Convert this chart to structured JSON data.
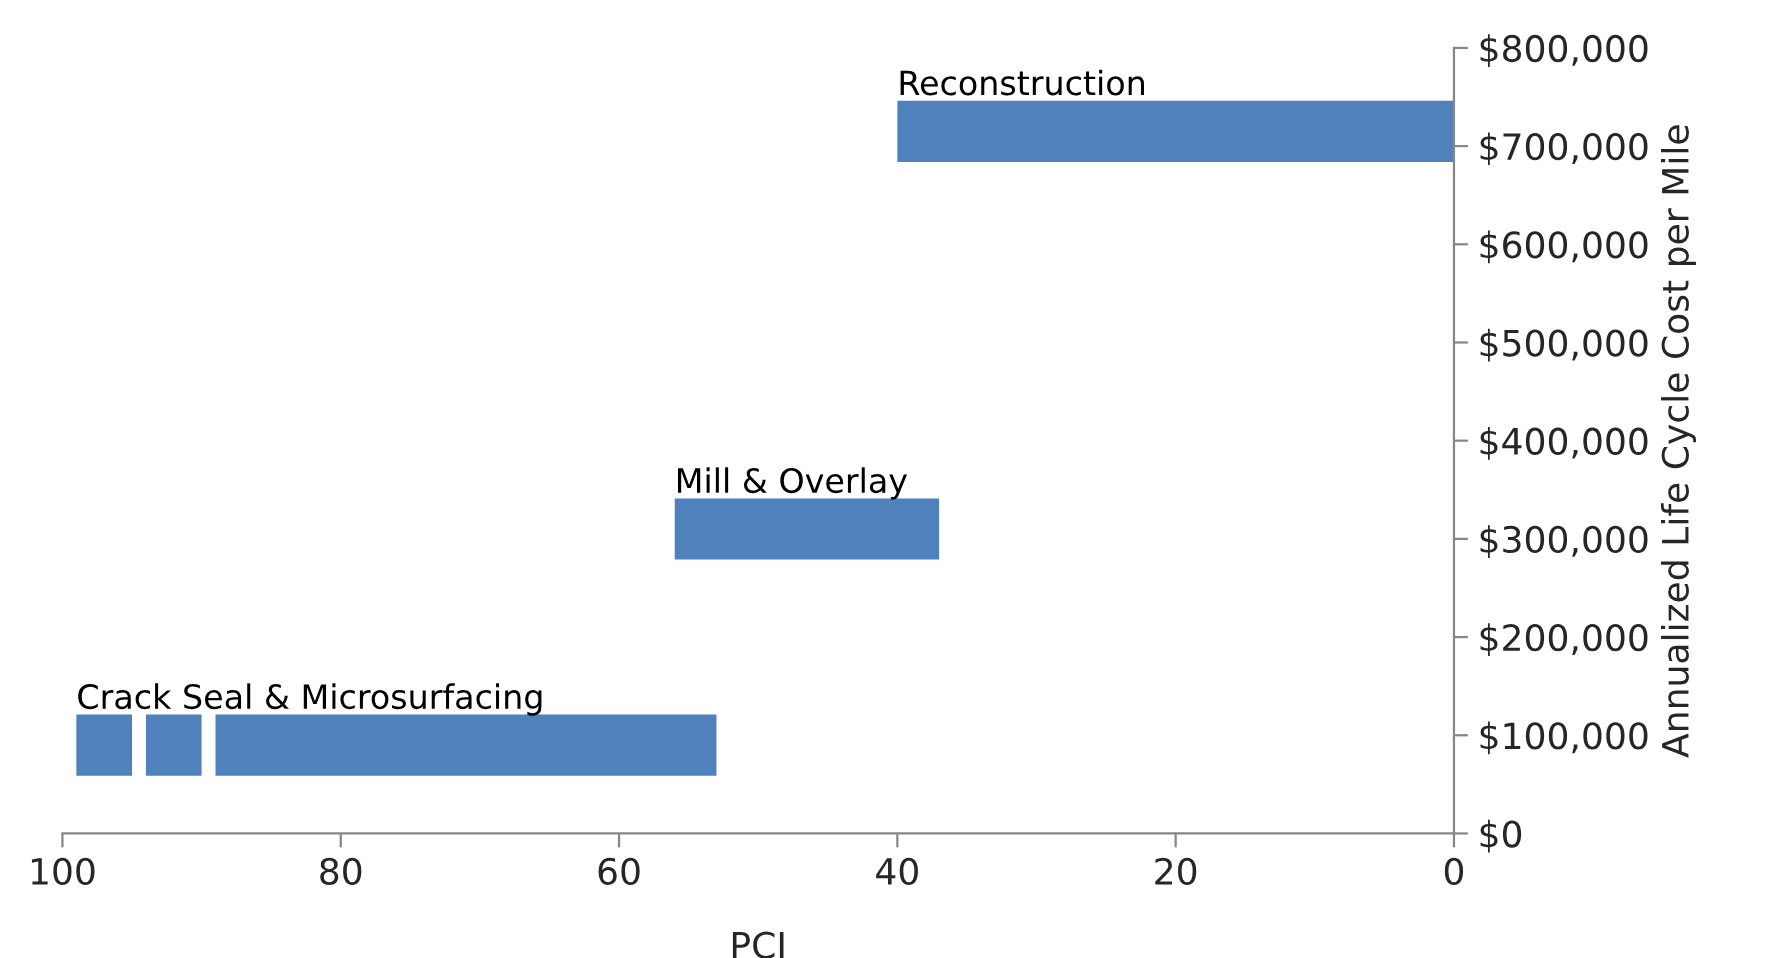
{
  "chart_data": {
    "type": "line",
    "xlabel": "PCI",
    "ylabel": "Annualized Life Cycle Cost per Mile",
    "xlim": [
      100,
      0
    ],
    "xticks": [
      100,
      80,
      60,
      40,
      20,
      0
    ],
    "ylim": [
      0,
      800000
    ],
    "yticks": [
      {
        "value": 0,
        "label": "$0"
      },
      {
        "value": 100000,
        "label": "$100,000"
      },
      {
        "value": 200000,
        "label": "$200,000"
      },
      {
        "value": 300000,
        "label": "$300,000"
      },
      {
        "value": 400000,
        "label": "$400,000"
      },
      {
        "value": 500000,
        "label": "$500,000"
      },
      {
        "value": 600000,
        "label": "$600,000"
      },
      {
        "value": 700000,
        "label": "$700,000"
      },
      {
        "value": 800000,
        "label": "$800,000"
      }
    ],
    "grid": false,
    "legend": false,
    "line_style": "solid",
    "marker": "none",
    "series": [
      {
        "name": "Crack Seal & Microsurfacing",
        "color": "#4f81bd",
        "x": [
          99,
          95,
          94.5,
          94,
          90,
          89.5,
          89,
          53
        ],
        "values": [
          90000,
          90000,
          null,
          90000,
          90000,
          null,
          90000,
          90000
        ]
      },
      {
        "name": "Mill & Overlay",
        "color": "#4f81bd",
        "x": [
          56,
          37
        ],
        "values": [
          310000,
          310000
        ]
      },
      {
        "name": "Reconstruction",
        "color": "#4f81bd",
        "x": [
          40,
          0
        ],
        "values": [
          715000,
          715000
        ]
      }
    ]
  }
}
